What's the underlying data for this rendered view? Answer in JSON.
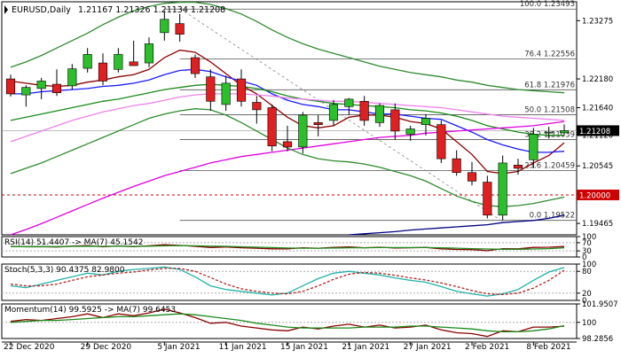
{
  "chart_data": {
    "type": "candlestick",
    "symbol_label": "EURUSD,Daily",
    "ohlc_label": "1.21167 1.21326 1.21134 1.21208",
    "y_ticks": [
      "1.23275",
      "1.22180",
      "1.21640",
      "1.21120",
      "1.20545",
      "1.19465"
    ],
    "y_tick_values": [
      1.23275,
      1.2218,
      1.2164,
      1.2112,
      1.20545,
      1.19465
    ],
    "price_range": [
      1.1925,
      1.2363
    ],
    "x_ticks": [
      {
        "label": "22 Dec 2020",
        "index": 0
      },
      {
        "label": "29 Dec 2020",
        "index": 5
      },
      {
        "label": "5 Jan 2021",
        "index": 10
      },
      {
        "label": "11 Jan 2021",
        "index": 14
      },
      {
        "label": "15 Jan 2021",
        "index": 18
      },
      {
        "label": "21 Jan 2021",
        "index": 22
      },
      {
        "label": "27 Jan 2021",
        "index": 26
      },
      {
        "label": "2 Feb 2021",
        "index": 30
      },
      {
        "label": "8 Feb 2021",
        "index": 34
      }
    ],
    "candles": [
      {
        "o": 1.2218,
        "h": 1.2226,
        "l": 1.2185,
        "c": 1.219
      },
      {
        "o": 1.2188,
        "h": 1.2206,
        "l": 1.2166,
        "c": 1.2202
      },
      {
        "o": 1.22,
        "h": 1.222,
        "l": 1.218,
        "c": 1.2214
      },
      {
        "o": 1.2208,
        "h": 1.2236,
        "l": 1.2186,
        "c": 1.2192
      },
      {
        "o": 1.2205,
        "h": 1.2246,
        "l": 1.2198,
        "c": 1.2237
      },
      {
        "o": 1.2238,
        "h": 1.2276,
        "l": 1.223,
        "c": 1.2264
      },
      {
        "o": 1.2248,
        "h": 1.2266,
        "l": 1.2206,
        "c": 1.2214
      },
      {
        "o": 1.2236,
        "h": 1.2276,
        "l": 1.223,
        "c": 1.2264
      },
      {
        "o": 1.225,
        "h": 1.229,
        "l": 1.2244,
        "c": 1.2243
      },
      {
        "o": 1.2248,
        "h": 1.2296,
        "l": 1.224,
        "c": 1.2284
      },
      {
        "o": 1.2305,
        "h": 1.2346,
        "l": 1.229,
        "c": 1.233
      },
      {
        "o": 1.2322,
        "h": 1.234,
        "l": 1.2288,
        "c": 1.2302
      },
      {
        "o": 1.2258,
        "h": 1.2264,
        "l": 1.222,
        "c": 1.2228
      },
      {
        "o": 1.2222,
        "h": 1.2236,
        "l": 1.2158,
        "c": 1.2176
      },
      {
        "o": 1.217,
        "h": 1.2224,
        "l": 1.2158,
        "c": 1.221
      },
      {
        "o": 1.2218,
        "h": 1.2236,
        "l": 1.2166,
        "c": 1.2176
      },
      {
        "o": 1.2174,
        "h": 1.2186,
        "l": 1.2134,
        "c": 1.216
      },
      {
        "o": 1.2164,
        "h": 1.217,
        "l": 1.2082,
        "c": 1.2092
      },
      {
        "o": 1.21,
        "h": 1.213,
        "l": 1.2082,
        "c": 1.209
      },
      {
        "o": 1.209,
        "h": 1.2156,
        "l": 1.2078,
        "c": 1.215
      },
      {
        "o": 1.2136,
        "h": 1.215,
        "l": 1.211,
        "c": 1.2132
      },
      {
        "o": 1.214,
        "h": 1.2178,
        "l": 1.213,
        "c": 1.217
      },
      {
        "o": 1.2166,
        "h": 1.2182,
        "l": 1.215,
        "c": 1.218
      },
      {
        "o": 1.2176,
        "h": 1.2186,
        "l": 1.213,
        "c": 1.214
      },
      {
        "o": 1.2136,
        "h": 1.2172,
        "l": 1.2128,
        "c": 1.2168
      },
      {
        "o": 1.216,
        "h": 1.2172,
        "l": 1.2104,
        "c": 1.212
      },
      {
        "o": 1.2114,
        "h": 1.213,
        "l": 1.2102,
        "c": 1.2124
      },
      {
        "o": 1.2132,
        "h": 1.2152,
        "l": 1.2112,
        "c": 1.2144
      },
      {
        "o": 1.2132,
        "h": 1.214,
        "l": 1.206,
        "c": 1.2068
      },
      {
        "o": 1.2068,
        "h": 1.2084,
        "l": 1.2036,
        "c": 1.2042
      },
      {
        "o": 1.2042,
        "h": 1.2062,
        "l": 1.2018,
        "c": 1.2026
      },
      {
        "o": 1.2024,
        "h": 1.2036,
        "l": 1.1956,
        "c": 1.1962
      },
      {
        "o": 1.1962,
        "h": 1.2074,
        "l": 1.1952,
        "c": 1.206
      },
      {
        "o": 1.2056,
        "h": 1.2068,
        "l": 1.2038,
        "c": 1.205
      },
      {
        "o": 1.2066,
        "h": 1.2126,
        "l": 1.205,
        "c": 1.2114
      },
      {
        "o": 1.2118,
        "h": 1.2128,
        "l": 1.2106,
        "c": 1.2118
      },
      {
        "o": 1.21167,
        "h": 1.21326,
        "l": 1.21134,
        "c": 1.21208
      }
    ],
    "overlay_lines": [
      {
        "color": "#8b0000",
        "values": [
          1.2214,
          1.221,
          1.2206,
          1.2204,
          1.2206,
          1.2212,
          1.2216,
          1.2222,
          1.2226,
          1.2236,
          1.2258,
          1.2272,
          1.2268,
          1.225,
          1.2228,
          1.2206,
          1.219,
          1.2168,
          1.2146,
          1.213,
          1.2126,
          1.213,
          1.2146,
          1.215,
          1.215,
          1.2146,
          1.2138,
          1.2134,
          1.2124,
          1.21,
          1.2076,
          1.2044,
          1.204,
          1.2044,
          1.206,
          1.2074,
          1.2098
        ]
      },
      {
        "color": "#1a1aff",
        "values": [
          1.219,
          1.219,
          1.2194,
          1.2196,
          1.2198,
          1.22,
          1.2204,
          1.2206,
          1.221,
          1.2216,
          1.2226,
          1.2234,
          1.2236,
          1.2232,
          1.2222,
          1.2214,
          1.2206,
          1.219,
          1.2178,
          1.217,
          1.2166,
          1.216,
          1.216,
          1.2156,
          1.2152,
          1.2152,
          1.2148,
          1.2144,
          1.2142,
          1.213,
          1.2118,
          1.2104,
          1.2094,
          1.2086,
          1.208,
          1.208,
          1.2082
        ]
      },
      {
        "color": "#1a8a1a",
        "values": [
          1.214,
          1.2146,
          1.2152,
          1.2158,
          1.2164,
          1.217,
          1.2176,
          1.218,
          1.2186,
          1.2192,
          1.2198,
          1.2202,
          1.2206,
          1.2208,
          1.2206,
          1.2204,
          1.22,
          1.2194,
          1.2186,
          1.218,
          1.2176,
          1.2172,
          1.217,
          1.2168,
          1.2166,
          1.2164,
          1.216,
          1.2158,
          1.2154,
          1.2148,
          1.214,
          1.213,
          1.2124,
          1.2118,
          1.2114,
          1.2112,
          1.2112
        ]
      },
      {
        "color": "#ee82ee",
        "values": [
          1.21,
          1.211,
          1.212,
          1.213,
          1.214,
          1.2148,
          1.2156,
          1.2162,
          1.2168,
          1.2172,
          1.2178,
          1.2184,
          1.2188,
          1.219,
          1.219,
          1.219,
          1.2188,
          1.2186,
          1.2182,
          1.218,
          1.2178,
          1.2176,
          1.2176,
          1.2174,
          1.2172,
          1.217,
          1.2168,
          1.2166,
          1.2164,
          1.216,
          1.2156,
          1.2152,
          1.2148,
          1.2146,
          1.2144,
          1.2142,
          1.214
        ]
      },
      {
        "color": "#e000e0",
        "values": [
          1.1925,
          1.1935,
          1.1946,
          1.1958,
          1.197,
          1.1982,
          1.1994,
          1.2005,
          1.2016,
          1.2026,
          1.2036,
          1.2044,
          1.2052,
          1.206,
          1.2066,
          1.2072,
          1.2076,
          1.208,
          1.2084,
          1.2088,
          1.2092,
          1.2096,
          1.21,
          1.2104,
          1.2108,
          1.211,
          1.2112,
          1.2116,
          1.2118,
          1.212,
          1.2122,
          1.2124,
          1.2126,
          1.2128,
          1.213,
          1.2134,
          1.2138
        ]
      },
      {
        "color": "#000080",
        "values": [
          null,
          null,
          null,
          null,
          null,
          null,
          null,
          null,
          null,
          null,
          null,
          null,
          null,
          null,
          null,
          null,
          null,
          null,
          null,
          null,
          null,
          null,
          1.1925,
          1.1927,
          1.1929,
          1.1931,
          1.1934,
          1.1936,
          1.1938,
          1.194,
          1.1942,
          1.1944,
          1.1948,
          1.195,
          1.1952,
          1.1956,
          1.1962
        ]
      },
      {
        "color": "#2e8b2e",
        "values": [
          1.224,
          1.225,
          1.2262,
          1.2276,
          1.229,
          1.2304,
          1.232,
          1.2334,
          1.2346,
          1.2354,
          1.236,
          1.2362,
          1.2362,
          1.2358,
          1.235,
          1.234,
          1.2326,
          1.231,
          1.2296,
          1.2284,
          1.2274,
          1.2266,
          1.2258,
          1.225,
          1.2242,
          1.2236,
          1.223,
          1.2226,
          1.2222,
          1.2216,
          1.2212,
          1.2206,
          1.2202,
          1.2198,
          1.2196,
          1.2194,
          1.2192
        ]
      },
      {
        "color": "#2e8b2e",
        "values": [
          1.204,
          1.205,
          1.206,
          1.2072,
          1.2084,
          1.2096,
          1.2108,
          1.212,
          1.2132,
          1.2144,
          1.2152,
          1.2158,
          1.2162,
          1.216,
          1.215,
          1.2136,
          1.212,
          1.2104,
          1.2088,
          1.2076,
          1.2068,
          1.2064,
          1.2062,
          1.2058,
          1.2052,
          1.2044,
          1.2036,
          1.2026,
          1.2012,
          1.1998,
          1.1988,
          1.198,
          1.1978,
          1.198,
          1.1984,
          1.199,
          1.1996
        ]
      }
    ],
    "fib_levels": [
      {
        "label": "100.0 1.23493",
        "value": 1.23493
      },
      {
        "label": "76.4 1.22556",
        "value": 1.22556
      },
      {
        "label": "61.8 1.21976",
        "value": 1.21976
      },
      {
        "label": "50.0 1.21508",
        "value": 1.21508
      },
      {
        "label": "38.2 1.21039",
        "value": 1.21039
      },
      {
        "label": "23.6 1.20459",
        "value": 1.20459
      },
      {
        "label": "0.0 1.19522",
        "value": 1.19522
      }
    ],
    "support_line": {
      "label": "1.20000",
      "value": 1.2
    },
    "current_price": {
      "label": "1.21208",
      "value": 1.21208
    },
    "trendline": [
      {
        "index": 11,
        "value": 1.235
      },
      {
        "index": 32,
        "value": 1.195
      }
    ],
    "panels": [
      {
        "title": "RSI(14) 51.4407 -> MA(7) 45.1542",
        "ticks": [
          "100",
          "70",
          "30",
          "0"
        ],
        "tick_values": [
          100,
          70,
          30,
          0
        ],
        "range": [
          0,
          100
        ],
        "lines": [
          {
            "color": "#8b0000",
            "values": [
              52,
              50,
              51,
              49,
              53,
              56,
              50,
              54,
              51,
              55,
              60,
              57,
              52,
              46,
              49,
              45,
              43,
              40,
              40,
              45,
              43,
              47,
              49,
              45,
              48,
              44,
              45,
              47,
              40,
              37,
              36,
              31,
              41,
              40,
              47,
              48,
              51.44
            ]
          },
          {
            "color": "#1a8a1a",
            "values": [
              51,
              51,
              51,
              51,
              52,
              53,
              52,
              53,
              52,
              53,
              55,
              56,
              55,
              53,
              52,
              50,
              48,
              46,
              44,
              43,
              43,
              44,
              45,
              45,
              46,
              46,
              46,
              46,
              45,
              43,
              41,
              39,
              38,
              38,
              39,
              41,
              45.15
            ]
          }
        ]
      },
      {
        "title": "Stoch(5,3,3) 90.4375 82.9800",
        "ticks": [
          "100",
          "80",
          "20",
          "0"
        ],
        "tick_values": [
          100,
          80,
          20,
          0
        ],
        "range": [
          0,
          100
        ],
        "lines": [
          {
            "color": "#20b2aa",
            "values": [
              40,
              35,
              45,
              55,
              65,
              75,
              70,
              80,
              85,
              88,
              92,
              85,
              65,
              40,
              30,
              25,
              20,
              15,
              20,
              40,
              60,
              75,
              80,
              75,
              70,
              62,
              55,
              50,
              38,
              25,
              18,
              12,
              18,
              30,
              55,
              78,
              90.44
            ]
          },
          {
            "color": "#b22222",
            "dashed": true,
            "values": [
              45,
              40,
              40,
              45,
              55,
              65,
              70,
              75,
              78,
              84,
              88,
              88,
              80,
              63,
              45,
              32,
              25,
              20,
              18,
              25,
              40,
              58,
              72,
              77,
              75,
              69,
              62,
              56,
              48,
              38,
              27,
              18,
              16,
              20,
              34,
              55,
              82.98
            ]
          }
        ]
      },
      {
        "title": "Momentum(14) 99.5925 -> MA(7) 99.6453",
        "ticks": [
          "101.9507",
          "100",
          "98.2856"
        ],
        "tick_values": [
          101.9507,
          100,
          98.2856
        ],
        "range": [
          98.2856,
          101.9507
        ],
        "lines": [
          {
            "color": "#8b0000",
            "values": [
              100.1,
              100.3,
              100.2,
              100.4,
              100.6,
              100.9,
              100.5,
              100.9,
              100.7,
              101.0,
              101.4,
              101.0,
              100.5,
              99.9,
              100.0,
              99.6,
              99.4,
              99.2,
              99.1,
              99.5,
              99.3,
              99.6,
              99.8,
              99.5,
              99.7,
              99.4,
              99.5,
              99.7,
              99.2,
              98.9,
              98.8,
              98.5,
              99.1,
              99.0,
              99.5,
              99.5,
              99.59
            ]
          },
          {
            "color": "#1a8a1a",
            "values": [
              100.0,
              100.1,
              100.2,
              100.2,
              100.3,
              100.4,
              100.5,
              100.6,
              100.6,
              100.7,
              100.8,
              100.9,
              100.8,
              100.6,
              100.4,
              100.2,
              99.9,
              99.7,
              99.5,
              99.4,
              99.4,
              99.4,
              99.4,
              99.5,
              99.5,
              99.5,
              99.6,
              99.6,
              99.5,
              99.4,
              99.3,
              99.1,
              99.0,
              99.0,
              99.1,
              99.3,
              99.65
            ]
          }
        ]
      }
    ]
  }
}
